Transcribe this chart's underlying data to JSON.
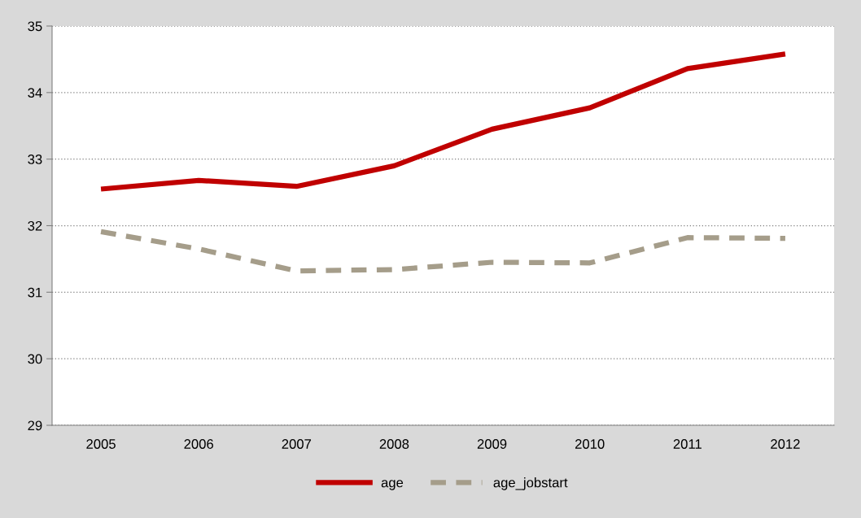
{
  "chart_data": {
    "type": "line",
    "categories": [
      "2005",
      "2006",
      "2007",
      "2008",
      "2009",
      "2010",
      "2011",
      "2012"
    ],
    "series": [
      {
        "name": "age",
        "color": "#c00000",
        "line_style": "solid",
        "values": [
          32.55,
          32.68,
          32.59,
          32.9,
          33.45,
          33.77,
          34.36,
          34.58
        ]
      },
      {
        "name": "age_jobstart",
        "color": "#a59d8a",
        "line_style": "dashed",
        "values": [
          31.91,
          31.65,
          31.32,
          31.34,
          31.45,
          31.44,
          31.82,
          31.81
        ]
      }
    ],
    "ylim": [
      29,
      35
    ],
    "yticks": [
      29,
      30,
      31,
      32,
      33,
      34,
      35
    ],
    "grid": "y",
    "legend": "bottom",
    "marker": "none"
  }
}
